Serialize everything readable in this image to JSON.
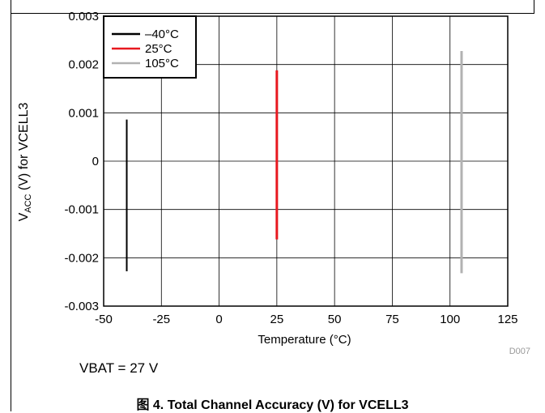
{
  "chart_data": {
    "type": "line",
    "title": "",
    "xlabel": "Temperature (°C)",
    "ylabel": {
      "prefix": "V",
      "subscript": "ACC",
      "suffix": " (V) for VCELL3"
    },
    "xlim": [
      -50,
      125
    ],
    "ylim": [
      -0.003,
      0.003
    ],
    "x_ticks": [
      -50,
      -25,
      0,
      25,
      50,
      75,
      100,
      125
    ],
    "y_ticks": [
      -0.003,
      -0.002,
      -0.001,
      0,
      0.001,
      0.002,
      0.003
    ],
    "x_tick_labels": [
      "-50",
      "-25",
      "0",
      "25",
      "50",
      "75",
      "100",
      "125"
    ],
    "y_tick_labels": [
      "-0.003",
      "-0.002",
      "-0.001",
      "0",
      "0.001",
      "0.002",
      "0.003"
    ],
    "grid": true,
    "legend_position": "top-left",
    "series": [
      {
        "name": "–40°C",
        "color": "#000000",
        "x": -40,
        "y_min": -0.00228,
        "y_max": 0.00086
      },
      {
        "name": "25°C",
        "color": "#e8181f",
        "x": 25,
        "y_min": -0.00162,
        "y_max": 0.00188
      },
      {
        "name": "105°C",
        "color": "#b2b2b2",
        "x": 105,
        "y_min": -0.00232,
        "y_max": 0.00228
      }
    ],
    "annotations": {
      "figure_code": "D007",
      "condition": "VBAT = 27 V"
    }
  },
  "caption": "图 4. Total Channel Accuracy (V) for VCELL3"
}
